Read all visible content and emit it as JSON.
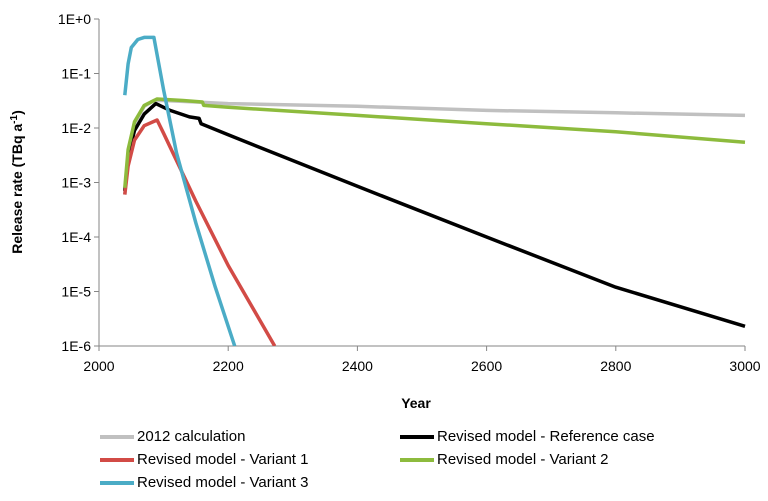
{
  "chart_data": {
    "type": "line",
    "xlabel": "Year",
    "ylabel": "Release rate (TBq a",
    "ylabel_sup": "-1",
    "ylabel_end": ")",
    "xlim": [
      2000,
      3000
    ],
    "ylim": [
      1e-06,
      1
    ],
    "yscale": "log",
    "grid": false,
    "legend_position": "bottom",
    "x_ticks": [
      "2000",
      "2200",
      "2400",
      "2600",
      "2800",
      "3000"
    ],
    "x_tick_values": [
      2000,
      2200,
      2400,
      2600,
      2800,
      3000
    ],
    "y_ticks": [
      "1E-6",
      "1E-5",
      "1E-4",
      "1E-3",
      "1E-2",
      "1E-1",
      "1E+0"
    ],
    "y_tick_values": [
      1e-06,
      1e-05,
      0.0001,
      0.001,
      0.01,
      0.1,
      1
    ],
    "series": [
      {
        "name": "2012 calculation",
        "color": "#c0c0c0",
        "points": [
          [
            2040,
            0.0006
          ],
          [
            2045,
            0.003
          ],
          [
            2055,
            0.012
          ],
          [
            2070,
            0.025
          ],
          [
            2085,
            0.032
          ],
          [
            2100,
            0.032
          ],
          [
            2150,
            0.03
          ],
          [
            2200,
            0.028
          ],
          [
            2400,
            0.025
          ],
          [
            2600,
            0.021
          ],
          [
            2800,
            0.019
          ],
          [
            3000,
            0.017
          ]
        ]
      },
      {
        "name": "Revised model - Reference case",
        "color": "#000000",
        "points": [
          [
            2040,
            0.0007
          ],
          [
            2045,
            0.003
          ],
          [
            2055,
            0.009
          ],
          [
            2070,
            0.018
          ],
          [
            2088,
            0.028
          ],
          [
            2110,
            0.021
          ],
          [
            2140,
            0.016
          ],
          [
            2155,
            0.015
          ],
          [
            2158,
            0.012
          ],
          [
            2200,
            0.0075
          ],
          [
            2400,
            0.00085
          ],
          [
            2600,
            0.0001
          ],
          [
            2800,
            1.2e-05
          ],
          [
            3000,
            2.3e-06
          ]
        ]
      },
      {
        "name": "Revised model - Variant 1",
        "color": "#d24b46",
        "points": [
          [
            2040,
            0.0006
          ],
          [
            2045,
            0.002
          ],
          [
            2055,
            0.006
          ],
          [
            2070,
            0.011
          ],
          [
            2090,
            0.014
          ],
          [
            2100,
            0.008
          ],
          [
            2150,
            0.00045
          ],
          [
            2200,
            3e-05
          ],
          [
            2272,
            1e-06
          ]
        ]
      },
      {
        "name": "Revised model - Variant 2",
        "color": "#8dbb3d",
        "points": [
          [
            2040,
            0.0008
          ],
          [
            2045,
            0.004
          ],
          [
            2055,
            0.013
          ],
          [
            2070,
            0.026
          ],
          [
            2090,
            0.034
          ],
          [
            2130,
            0.032
          ],
          [
            2160,
            0.03
          ],
          [
            2162,
            0.026
          ],
          [
            2200,
            0.024
          ],
          [
            2400,
            0.017
          ],
          [
            2600,
            0.012
          ],
          [
            2800,
            0.0085
          ],
          [
            3000,
            0.0055
          ]
        ]
      },
      {
        "name": "Revised model - Variant 3",
        "color": "#4bacc6",
        "points": [
          [
            2040,
            0.04
          ],
          [
            2045,
            0.15
          ],
          [
            2050,
            0.3
          ],
          [
            2060,
            0.42
          ],
          [
            2070,
            0.46
          ],
          [
            2085,
            0.46
          ],
          [
            2100,
            0.05
          ],
          [
            2120,
            0.0035
          ],
          [
            2150,
            0.00018
          ],
          [
            2180,
            1.2e-05
          ],
          [
            2210,
            1e-06
          ]
        ]
      }
    ]
  }
}
